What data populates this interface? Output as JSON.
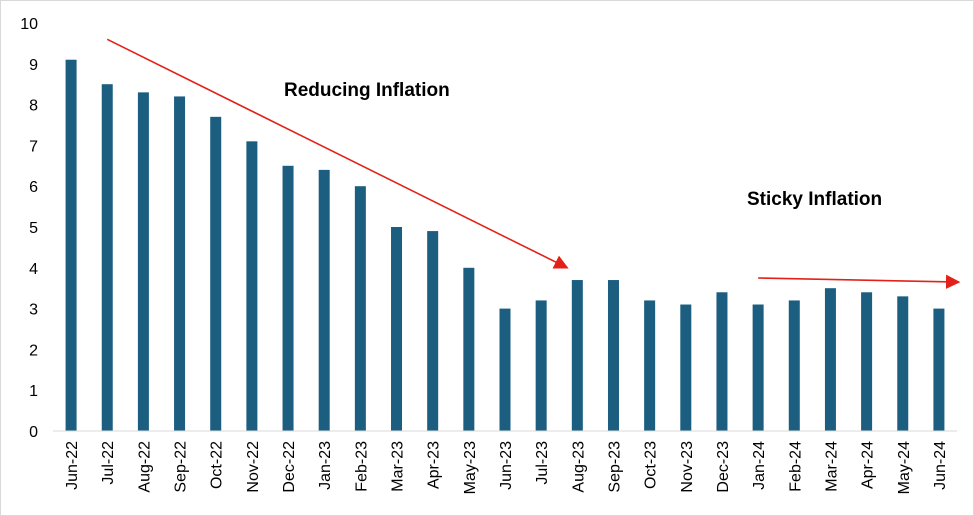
{
  "chart_data": {
    "type": "bar",
    "title": "",
    "xlabel": "",
    "ylabel": "",
    "ylim": [
      0,
      10
    ],
    "yticks": [
      "0",
      "1",
      "2",
      "3",
      "4",
      "5",
      "6",
      "7",
      "8",
      "9",
      "10"
    ],
    "grid": false,
    "legend": "none",
    "categories": [
      "Jun-22",
      "Jul-22",
      "Aug-22",
      "Sep-22",
      "Oct-22",
      "Nov-22",
      "Dec-22",
      "Jan-23",
      "Feb-23",
      "Mar-23",
      "Apr-23",
      "May-23",
      "Jun-23",
      "Jul-23",
      "Aug-23",
      "Sep-23",
      "Oct-23",
      "Nov-23",
      "Dec-23",
      "Jan-24",
      "Feb-24",
      "Mar-24",
      "Apr-24",
      "May-24",
      "Jun-24"
    ],
    "values": [
      9.1,
      8.5,
      8.3,
      8.2,
      7.7,
      7.1,
      6.5,
      6.4,
      6.0,
      5.0,
      4.9,
      4.0,
      3.0,
      3.2,
      3.7,
      3.7,
      3.2,
      3.1,
      3.4,
      3.1,
      3.2,
      3.5,
      3.4,
      3.3,
      3.0
    ],
    "annotations": [
      {
        "text": "Reducing Inflation",
        "color": "#000000"
      },
      {
        "text": "Sticky Inflation",
        "color": "#000000"
      }
    ],
    "trend_arrows": [
      {
        "name": "reducing",
        "from": {
          "x": "Jul-22",
          "y": 9.6
        },
        "to": {
          "x": "Aug-23",
          "y": 4.0
        }
      },
      {
        "name": "sticky",
        "from": {
          "x": "Jan-24",
          "y": 3.75
        },
        "to": {
          "x": "Jun-24",
          "y": 3.65
        }
      }
    ],
    "colors": {
      "bar": "#1b5e7f",
      "arrow": "#e32119",
      "axis": "#d9d9d9"
    }
  }
}
